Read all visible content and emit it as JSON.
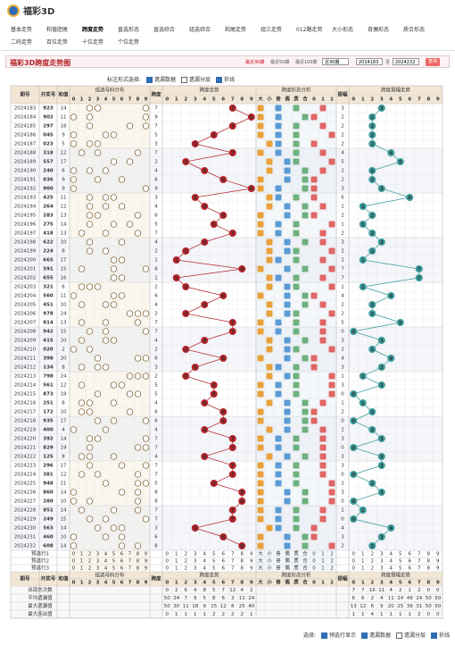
{
  "header": {
    "logo": "福彩3D",
    "nav": [
      "基本走势",
      "和值胆尾",
      "跨度走势",
      "直选形态",
      "直选综合",
      "组选综合",
      "和尾走势",
      "组三走势",
      "012路走势",
      "大小形态",
      "奇偶形态",
      "质合形态"
    ],
    "nav2": [
      "二码走势",
      "百位走势",
      "十位走势",
      "个位走势"
    ],
    "active": 2
  },
  "title": "福彩3D跨度走势图",
  "filters": {
    "recent": [
      "最近30期",
      "最近50期",
      "最近100期"
    ],
    "select": "近30期",
    "from": "2024183",
    "sep": "至",
    "to": "2024232",
    "button": "查询"
  },
  "options": {
    "label": "标注形式选择:",
    "items": [
      "遗漏数据",
      "遗漏分层",
      "折线"
    ],
    "checked": [
      true,
      false,
      true
    ]
  },
  "table": {
    "heads": {
      "issue": "期号",
      "number": "开奖号",
      "sum": "和值",
      "dist": "组选号码分布",
      "span": "跨度",
      "spanTrend": "跨度走势",
      "shape": "跨度形态分析",
      "amp": "振幅",
      "ampTrend": "跨度振幅走势"
    },
    "digits": [
      0,
      1,
      2,
      3,
      4,
      5,
      6,
      7,
      8,
      9
    ],
    "shapeLabels": [
      "大",
      "小",
      "奇",
      "偶",
      "质",
      "合",
      "0",
      "1",
      "2"
    ],
    "rows": [
      [
        "2024183",
        "923",
        14,
        7,
        3
      ],
      [
        "2024184",
        "902",
        11,
        9,
        2
      ],
      [
        "2024185",
        "297",
        18,
        7,
        2
      ],
      [
        "2024186",
        "045",
        9,
        5,
        2
      ],
      [
        "2024187",
        "023",
        5,
        3,
        2
      ],
      [
        "2024188",
        "318",
        12,
        7,
        4
      ],
      [
        "2024189",
        "557",
        17,
        2,
        5
      ],
      [
        "2024190",
        "240",
        6,
        4,
        2
      ],
      [
        "2024191",
        "036",
        9,
        6,
        2
      ],
      [
        "2024192",
        "900",
        9,
        9,
        3
      ],
      [
        "2024193",
        "425",
        11,
        3,
        6
      ],
      [
        "2024194",
        "264",
        12,
        4,
        1
      ],
      [
        "2024195",
        "283",
        13,
        6,
        2
      ],
      [
        "2024196",
        "275",
        14,
        5,
        1
      ],
      [
        "2024197",
        "418",
        13,
        7,
        2
      ],
      [
        "2024198",
        "622",
        10,
        4,
        3
      ],
      [
        "2024199",
        "224",
        8,
        2,
        2
      ],
      [
        "2024200",
        "665",
        17,
        1,
        1
      ],
      [
        "2024201",
        "591",
        15,
        8,
        7
      ],
      [
        "2024202",
        "655",
        16,
        1,
        7
      ],
      [
        "2024203",
        "321",
        6,
        2,
        1
      ],
      [
        "2024204",
        "560",
        11,
        6,
        4
      ],
      [
        "2024205",
        "451",
        10,
        4,
        2
      ],
      [
        "2024206",
        "978",
        24,
        2,
        2
      ],
      [
        "2024207",
        "814",
        13,
        7,
        5
      ],
      [
        "2024208",
        "942",
        15,
        7,
        0
      ],
      [
        "2024209",
        "415",
        10,
        4,
        3
      ],
      [
        "2024210",
        "020",
        2,
        2,
        2
      ],
      [
        "2024211",
        "398",
        20,
        6,
        4
      ],
      [
        "2024212",
        "134",
        8,
        3,
        3
      ],
      [
        "2024213",
        "798",
        24,
        2,
        1
      ],
      [
        "2024214",
        "561",
        12,
        5,
        3
      ],
      [
        "2024215",
        "873",
        18,
        5,
        0
      ],
      [
        "2024216",
        "251",
        8,
        4,
        1
      ],
      [
        "2024217",
        "172",
        10,
        6,
        2
      ],
      [
        "2024218",
        "935",
        17,
        6,
        0
      ],
      [
        "2024219",
        "400",
        4,
        4,
        2
      ],
      [
        "2024220",
        "392",
        14,
        7,
        3
      ],
      [
        "2024221",
        "829",
        19,
        7,
        0
      ],
      [
        "2024222",
        "125",
        8,
        4,
        3
      ],
      [
        "2024223",
        "296",
        17,
        7,
        3
      ],
      [
        "2024224",
        "381",
        12,
        7,
        0
      ],
      [
        "2024225",
        "948",
        21,
        5,
        2
      ],
      [
        "2024226",
        "860",
        14,
        8,
        3
      ],
      [
        "2024227",
        "280",
        10,
        8,
        0
      ],
      [
        "2024228",
        "851",
        14,
        7,
        1
      ],
      [
        "2024229",
        "249",
        15,
        7,
        0
      ],
      [
        "2024230",
        "563",
        14,
        3,
        4
      ],
      [
        "2024231",
        "460",
        10,
        6,
        3
      ],
      [
        "2024232",
        "608",
        14,
        8,
        2
      ]
    ],
    "preselect": [
      "预选行1",
      "预选行2",
      "预选行3"
    ],
    "stats": {
      "labels": [
        "出现总次数",
        "平均遗漏值",
        "最大遗漏值",
        "最大连出值"
      ],
      "span": [
        [
          0,
          2,
          6,
          4,
          8,
          5,
          7,
          12,
          4,
          2
        ],
        [
          50,
          24,
          7,
          9,
          5,
          8,
          6,
          3,
          11,
          24
        ],
        [
          50,
          30,
          11,
          18,
          9,
          15,
          12,
          8,
          25,
          40
        ],
        [
          0,
          1,
          1,
          1,
          1,
          2,
          2,
          2,
          2,
          1
        ]
      ],
      "amp": [
        [
          7,
          7,
          16,
          11,
          4,
          2,
          1,
          2,
          0,
          0
        ],
        [
          6,
          6,
          2,
          4,
          11,
          24,
          49,
          24,
          50,
          50
        ],
        [
          13,
          12,
          6,
          9,
          20,
          25,
          39,
          31,
          50,
          50
        ],
        [
          1,
          1,
          4,
          1,
          1,
          1,
          1,
          2,
          0,
          0
        ]
      ]
    }
  },
  "footer": {
    "label": "选择:",
    "items": [
      "预选行显示",
      "遗漏数据",
      "遗漏分层",
      "折线"
    ],
    "checked": [
      true,
      true,
      false,
      true
    ]
  }
}
